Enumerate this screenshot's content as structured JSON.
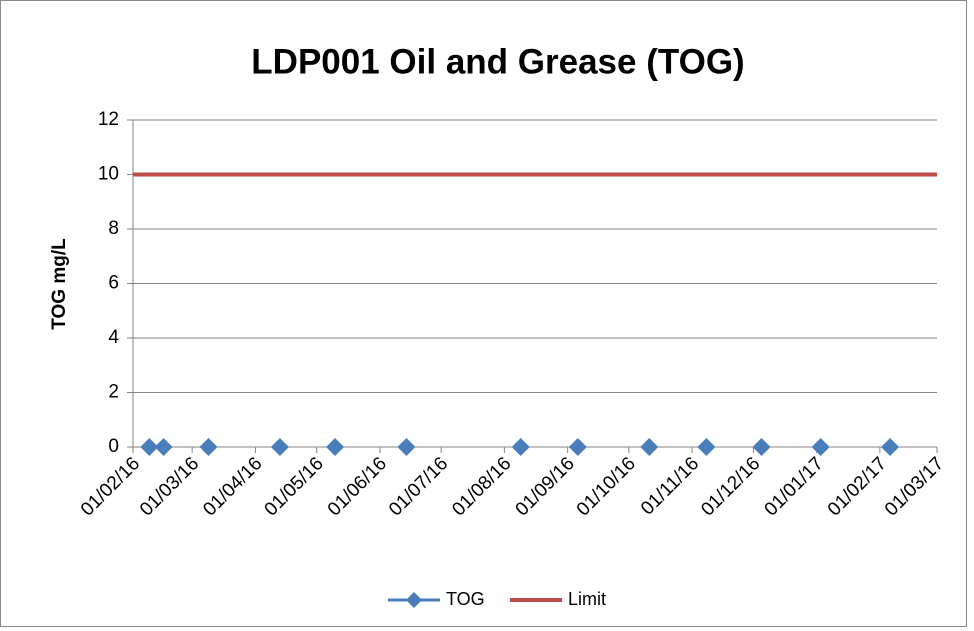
{
  "chart_data": {
    "type": "line",
    "title": "LDP001 Oil and Grease (TOG)",
    "y_label": "TOG mg/L",
    "ylim": [
      0,
      12
    ],
    "yticks": [
      0,
      2,
      4,
      6,
      8,
      10,
      12
    ],
    "xlim": [
      "01/02/16",
      "01/03/17"
    ],
    "xticks": [
      "01/02/16",
      "01/03/16",
      "01/04/16",
      "01/05/16",
      "01/06/16",
      "01/07/16",
      "01/08/16",
      "01/09/16",
      "01/10/16",
      "01/11/16",
      "01/12/16",
      "01/01/17",
      "01/02/17",
      "01/03/17"
    ],
    "grid": true,
    "legend": "bottom",
    "series": [
      {
        "name": "TOG",
        "color": "#4a7ebb",
        "marker": "diamond",
        "x": [
          "09/02/16",
          "16/02/16",
          "09/03/16",
          "13/04/16",
          "10/05/16",
          "14/06/16",
          "09/08/16",
          "06/09/16",
          "11/10/16",
          "08/11/16",
          "05/12/16",
          "03/01/17",
          "06/02/17"
        ],
        "values": [
          0,
          0,
          0,
          0,
          0,
          0,
          0,
          0,
          0,
          0,
          0,
          0,
          0
        ]
      },
      {
        "name": "Limit",
        "color": "#be4b48",
        "marker": "none",
        "x": [
          "01/02/16",
          "01/03/17"
        ],
        "values": [
          10,
          10
        ]
      }
    ]
  }
}
